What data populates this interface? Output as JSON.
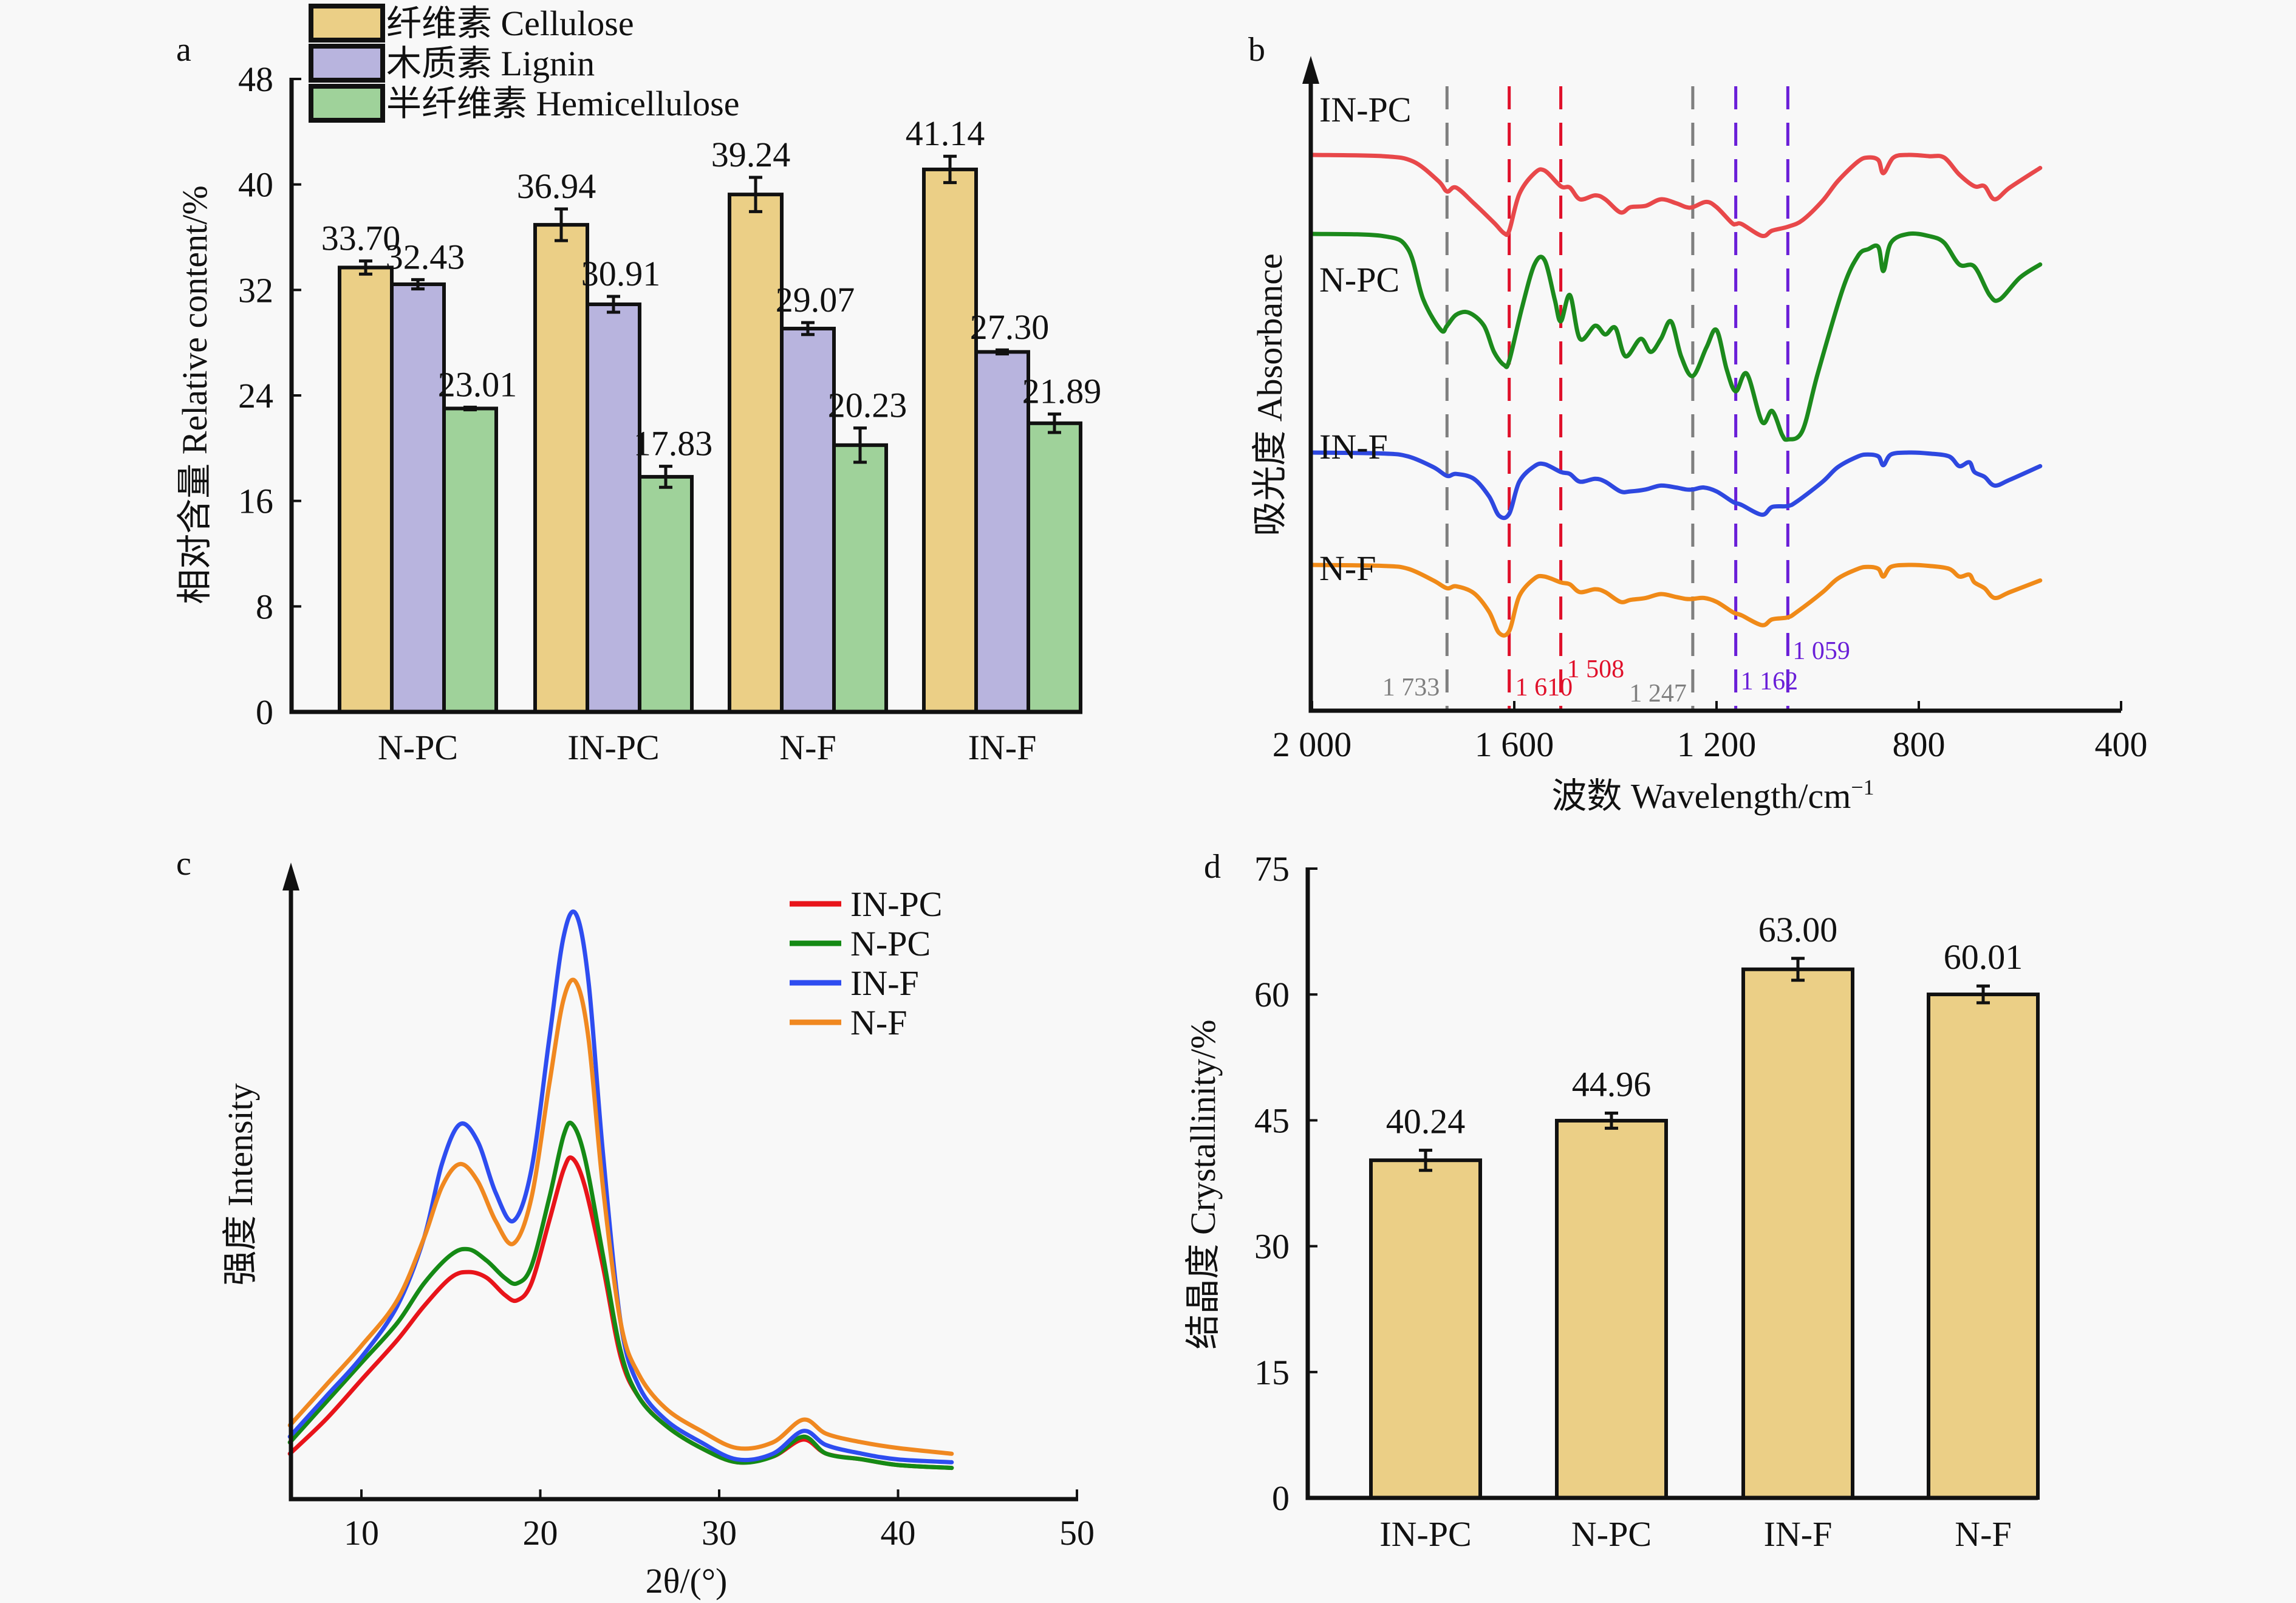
{
  "figure": {
    "panels": [
      "a",
      "b",
      "c",
      "d"
    ]
  },
  "chart_data": [
    {
      "panel": "a",
      "type": "bar",
      "title": "",
      "xlabel": "",
      "ylabel": "相对含量 Relative content/%",
      "ylim": [
        0,
        48
      ],
      "yticks": [
        0,
        8,
        16,
        24,
        32,
        40,
        48
      ],
      "categories": [
        "N-PC",
        "IN-PC",
        "N-F",
        "IN-F"
      ],
      "legend_position": "top",
      "series": [
        {
          "name": "纤维素 Cellulose",
          "color": "#ebcf86",
          "values": [
            33.7,
            36.94,
            39.24,
            41.14
          ],
          "errors": [
            0.5,
            1.2,
            1.3,
            1.0
          ],
          "labels": [
            "33.70",
            "36.94",
            "39.24",
            "41.14"
          ]
        },
        {
          "name": "木质素 Lignin",
          "color": "#b8b4de",
          "values": [
            32.43,
            30.91,
            29.07,
            27.3
          ],
          "errors": [
            0.35,
            0.6,
            0.45,
            0.15
          ],
          "labels": [
            "32.43",
            "30.91",
            "29.07",
            "27.30"
          ]
        },
        {
          "name": "半纤维素 Hemicellulose",
          "color": "#9fd29a",
          "values": [
            23.01,
            17.83,
            20.23,
            21.89
          ],
          "errors": [
            0.1,
            0.8,
            1.3,
            0.7
          ],
          "labels": [
            "23.01",
            "17.83",
            "20.23",
            "21.89"
          ]
        }
      ]
    },
    {
      "panel": "b",
      "type": "line",
      "title": "",
      "xlabel": "波数 Wavelength/cm",
      "xlabel_superscript": "−1",
      "ylabel": "吸光度 Absorbance",
      "xlim": [
        2000,
        400
      ],
      "xticks": [
        2000,
        1600,
        1200,
        800,
        400
      ],
      "xtick_labels": [
        "2 000",
        "1 600",
        "1 200",
        "800",
        "400"
      ],
      "grid": false,
      "reference_lines": [
        {
          "x": 1733,
          "label": "1 733",
          "color": "#7f7f7f"
        },
        {
          "x": 1610,
          "label": "1 610",
          "color": "#e0102a"
        },
        {
          "x": 1508,
          "label": "1 508",
          "color": "#e0102a"
        },
        {
          "x": 1247,
          "label": "1 247",
          "color": "#7f7f7f"
        },
        {
          "x": 1162,
          "label": "1 162",
          "color": "#6a1fd8"
        },
        {
          "x": 1059,
          "label": "1 059",
          "color": "#6a1fd8"
        }
      ],
      "series": [
        {
          "name": "IN-PC",
          "color": "#e8484a",
          "offset": 0.0,
          "x": [
            2000,
            1860,
            1800,
            1750,
            1733,
            1715,
            1680,
            1640,
            1620,
            1610,
            1590,
            1560,
            1540,
            1508,
            1490,
            1470,
            1440,
            1420,
            1390,
            1370,
            1340,
            1310,
            1280,
            1260,
            1247,
            1220,
            1200,
            1170,
            1162,
            1150,
            1110,
            1090,
            1059,
            1030,
            990,
            960,
            920,
            900,
            880,
            870,
            850,
            820,
            780,
            750,
            720,
            690,
            670,
            650,
            620,
            560
          ],
          "y": [
            100,
            99,
            95,
            80,
            72,
            75,
            63,
            48,
            40,
            42,
            70,
            86,
            88,
            76,
            75,
            66,
            69,
            66,
            56,
            60,
            61,
            66,
            63,
            60,
            60,
            64,
            60,
            48,
            47,
            47,
            38,
            42,
            45,
            50,
            65,
            80,
            95,
            98,
            96,
            86,
            98,
            100,
            99,
            98,
            85,
            76,
            76,
            66,
            75,
            90
          ]
        },
        {
          "name": "N-PC",
          "color": "#1c8a1c",
          "offset": 0.0,
          "x": [
            2000,
            1860,
            1810,
            1780,
            1745,
            1733,
            1715,
            1690,
            1660,
            1640,
            1620,
            1610,
            1585,
            1560,
            1540,
            1520,
            1508,
            1490,
            1470,
            1440,
            1420,
            1400,
            1380,
            1350,
            1330,
            1310,
            1290,
            1270,
            1247,
            1220,
            1200,
            1180,
            1162,
            1140,
            1110,
            1090,
            1070,
            1059,
            1030,
            1000,
            950,
            920,
            900,
            880,
            870,
            855,
            820,
            780,
            750,
            720,
            690,
            660,
            640,
            600,
            560
          ],
          "y": [
            100,
            99,
            93,
            70,
            56,
            58,
            63,
            64,
            58,
            46,
            40,
            42,
            66,
            86,
            88,
            70,
            60,
            72,
            52,
            58,
            54,
            57,
            44,
            52,
            46,
            52,
            60,
            44,
            35,
            48,
            56,
            38,
            28,
            36,
            14,
            19,
            8,
            6,
            10,
            36,
            75,
            90,
            93,
            94,
            83,
            96,
            100,
            99,
            96,
            86,
            85,
            72,
            70,
            80,
            86
          ]
        },
        {
          "name": "IN-F",
          "color": "#2e48e0",
          "offset": 0.0,
          "x": [
            2000,
            1860,
            1810,
            1760,
            1733,
            1715,
            1680,
            1650,
            1630,
            1610,
            1590,
            1560,
            1540,
            1508,
            1490,
            1470,
            1440,
            1420,
            1390,
            1370,
            1340,
            1310,
            1280,
            1260,
            1247,
            1225,
            1200,
            1170,
            1162,
            1150,
            1110,
            1090,
            1059,
            1040,
            990,
            960,
            920,
            900,
            880,
            870,
            855,
            820,
            780,
            740,
            720,
            700,
            690,
            670,
            650,
            620,
            560
          ],
          "y": [
            100,
            99,
            96,
            85,
            76,
            78,
            73,
            55,
            35,
            37,
            70,
            86,
            88,
            80,
            78,
            70,
            73,
            70,
            60,
            60,
            62,
            66,
            64,
            62,
            62,
            64,
            60,
            50,
            48,
            46,
            36,
            44,
            45,
            50,
            70,
            85,
            96,
            98,
            96,
            87,
            98,
            100,
            99,
            96,
            86,
            90,
            80,
            75,
            66,
            72,
            86
          ]
        },
        {
          "name": "N-F",
          "color": "#f08a18",
          "offset": 0.0,
          "x": [
            2000,
            1860,
            1810,
            1760,
            1733,
            1715,
            1680,
            1650,
            1630,
            1610,
            1590,
            1560,
            1540,
            1508,
            1490,
            1470,
            1440,
            1420,
            1390,
            1370,
            1340,
            1310,
            1280,
            1260,
            1247,
            1225,
            1200,
            1170,
            1162,
            1150,
            1110,
            1090,
            1059,
            1040,
            990,
            960,
            920,
            900,
            880,
            870,
            855,
            820,
            780,
            740,
            720,
            700,
            690,
            670,
            650,
            620,
            560
          ],
          "y": [
            100,
            99,
            96,
            84,
            76,
            78,
            71,
            52,
            30,
            32,
            68,
            86,
            88,
            82,
            80,
            72,
            75,
            72,
            62,
            64,
            66,
            70,
            67,
            65,
            65,
            66,
            62,
            52,
            50,
            48,
            38,
            44,
            46,
            52,
            72,
            86,
            96,
            98,
            96,
            88,
            98,
            100,
            99,
            96,
            88,
            90,
            82,
            76,
            66,
            72,
            84
          ]
        }
      ],
      "curve_labels": [
        "IN-PC",
        "N-PC",
        "IN-F",
        "N-F"
      ]
    },
    {
      "panel": "c",
      "type": "line",
      "title": "",
      "xlabel": "2θ/(°)",
      "ylabel": "强度 Intensity",
      "xlim": [
        6,
        50
      ],
      "xticks": [
        10,
        20,
        30,
        40,
        50
      ],
      "xtick_labels": [
        "10",
        "20",
        "30",
        "40",
        "50"
      ],
      "legend_position": "top-right",
      "grid": false,
      "series": [
        {
          "name": "IN-PC",
          "color": "#e8141a",
          "x": [
            6,
            8,
            10,
            12,
            13.5,
            15,
            16,
            17,
            18,
            18.7,
            19.5,
            20.5,
            21.3,
            21.8,
            22.5,
            23.5,
            24.5,
            25.5,
            27,
            29,
            31,
            33,
            34.7,
            36,
            38,
            40,
            43
          ],
          "y": [
            5,
            11,
            18,
            25,
            31,
            36,
            37,
            36,
            33,
            32,
            35,
            46,
            55,
            57,
            52,
            38,
            22,
            15,
            10,
            6,
            3.5,
            4.5,
            7.5,
            5,
            4,
            3,
            2.5
          ]
        },
        {
          "name": "N-PC",
          "color": "#158a15",
          "x": [
            6,
            8,
            10,
            12,
            13.5,
            15,
            16,
            17,
            18,
            18.7,
            19.5,
            20.5,
            21.3,
            21.8,
            22.5,
            23.5,
            24.5,
            25.5,
            27,
            29,
            31,
            33,
            34.7,
            36,
            38,
            40,
            43
          ],
          "y": [
            7,
            14,
            21,
            28,
            35,
            40,
            41,
            39,
            36,
            35,
            38,
            50,
            61,
            63,
            57,
            40,
            23,
            15,
            10,
            6,
            3.5,
            4.5,
            8,
            5,
            4,
            3,
            2.5
          ]
        },
        {
          "name": "IN-F",
          "color": "#2e4df0",
          "x": [
            6,
            8,
            10,
            12,
            13.5,
            14.5,
            15.5,
            16.5,
            17.5,
            18.5,
            19.5,
            20.5,
            21.3,
            22,
            22.7,
            23.5,
            24.5,
            25.5,
            27,
            29,
            31,
            33,
            34.7,
            36,
            38,
            40,
            43
          ],
          "y": [
            8,
            15,
            22,
            31,
            43,
            56,
            63,
            60,
            51,
            46,
            55,
            78,
            96,
            100,
            88,
            58,
            28,
            17,
            11,
            7,
            4,
            5,
            9,
            6.5,
            5,
            4,
            3.5
          ]
        },
        {
          "name": "N-F",
          "color": "#f08820",
          "x": [
            6,
            8,
            10,
            12,
            13.5,
            14.5,
            15.5,
            16.5,
            17.5,
            18.5,
            19.5,
            20.5,
            21.3,
            22,
            22.7,
            23.5,
            24.5,
            25.5,
            27,
            29,
            31,
            33,
            34.7,
            36,
            38,
            40,
            43
          ],
          "y": [
            10,
            17,
            24,
            32,
            43,
            52,
            56,
            53,
            46,
            42,
            50,
            70,
            85,
            88,
            78,
            52,
            28,
            19,
            13,
            9,
            6,
            7,
            11,
            8.5,
            7,
            6,
            5
          ]
        }
      ]
    },
    {
      "panel": "d",
      "type": "bar",
      "title": "",
      "xlabel": "",
      "ylabel": "结晶度 Crystallinity/%",
      "ylim": [
        0,
        75
      ],
      "yticks": [
        0,
        15,
        30,
        45,
        60,
        75
      ],
      "categories": [
        "IN-PC",
        "N-PC",
        "IN-F",
        "N-F"
      ],
      "series": [
        {
          "name": "Crystallinity",
          "color": "#ebcf86",
          "values": [
            40.24,
            44.96,
            63.0,
            60.01
          ],
          "errors": [
            1.2,
            0.9,
            1.3,
            1.0
          ],
          "labels": [
            "40.24",
            "44.96",
            "63.00",
            "60.01"
          ]
        }
      ]
    }
  ]
}
